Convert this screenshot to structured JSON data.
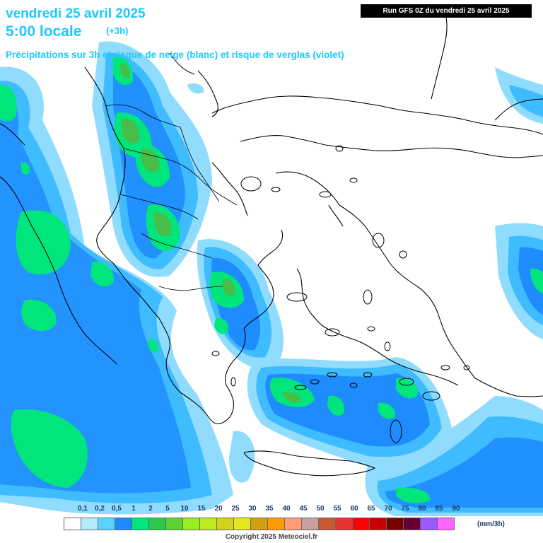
{
  "header": {
    "date": "vendredi 25 avril 2025",
    "time": "5:00 locale",
    "step": "(+3h)",
    "description": "Précipitations sur 3h et risque de neige (blanc) et risque de verglas (violet)"
  },
  "run_info": "Run GFS 0Z du vendredi 25 avril 2025",
  "legend": {
    "unit": "(mm/3h)",
    "labels": [
      "0,1",
      "0,2",
      "0,5",
      "1",
      "2",
      "5",
      "10",
      "15",
      "20",
      "25",
      "30",
      "35",
      "40",
      "45",
      "50",
      "55",
      "60",
      "65",
      "70",
      "75",
      "80",
      "85",
      "90"
    ],
    "colors": [
      "#ffffff",
      "#b4ecff",
      "#5ad2ff",
      "#1e8cff",
      "#00e67d",
      "#2dc84b",
      "#5ad232",
      "#96f01e",
      "#beeb1e",
      "#d2d21e",
      "#e6e61e",
      "#d2a00f",
      "#ff9b00",
      "#ff9b78",
      "#c8a0a0",
      "#c85a32",
      "#e63232",
      "#ff0000",
      "#c80000",
      "#780000",
      "#640032",
      "#9b5aff",
      "#ff64ff"
    ]
  },
  "copyright": "Copyright 2025 Meteociel.fr"
}
